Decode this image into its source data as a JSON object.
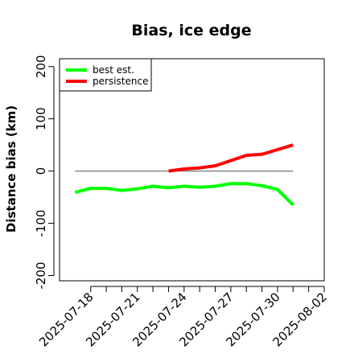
{
  "chart_data": {
    "type": "line",
    "title": "Bias, ice edge",
    "xlabel": "",
    "ylabel": "Distance bias (km)",
    "ylim": [
      -210,
      215
    ],
    "yticks": [
      -200,
      -100,
      0,
      100,
      200
    ],
    "ytick_labels": [
      "-200",
      "-100",
      "0",
      "100",
      "200"
    ],
    "xlim": [
      "2025-07-16",
      "2025-08-02"
    ],
    "xticks": [
      "2025-07-18",
      "2025-07-19",
      "2025-07-20",
      "2025-07-21",
      "2025-07-22",
      "2025-07-23",
      "2025-07-24",
      "2025-07-25",
      "2025-07-26",
      "2025-07-27",
      "2025-07-28",
      "2025-07-29",
      "2025-07-30",
      "2025-07-31",
      "2025-08-01",
      "2025-08-02"
    ],
    "xtick_labels": [
      {
        "date": "2025-07-18",
        "label": "2025-07-18"
      },
      {
        "date": "2025-07-21",
        "label": "2025-07-21"
      },
      {
        "date": "2025-07-24",
        "label": "2025-07-24"
      },
      {
        "date": "2025-07-27",
        "label": "2025-07-27"
      },
      {
        "date": "2025-07-30",
        "label": "2025-07-30"
      },
      {
        "date": "2025-08-02",
        "label": "2025-08-02"
      }
    ],
    "reference_line": {
      "y": 0,
      "x_start": "2025-07-17",
      "x_end": "2025-07-31",
      "color": "#777777"
    },
    "legend": {
      "position": "top-left"
    },
    "series": [
      {
        "name": "best est.",
        "color": "#00ff00",
        "points": [
          {
            "x": "2025-07-17",
            "y": -41
          },
          {
            "x": "2025-07-18",
            "y": -33
          },
          {
            "x": "2025-07-19",
            "y": -33
          },
          {
            "x": "2025-07-20",
            "y": -37
          },
          {
            "x": "2025-07-21",
            "y": -34
          },
          {
            "x": "2025-07-22",
            "y": -29
          },
          {
            "x": "2025-07-23",
            "y": -32
          },
          {
            "x": "2025-07-24",
            "y": -29
          },
          {
            "x": "2025-07-25",
            "y": -31
          },
          {
            "x": "2025-07-26",
            "y": -29
          },
          {
            "x": "2025-07-27",
            "y": -24
          },
          {
            "x": "2025-07-28",
            "y": -24
          },
          {
            "x": "2025-07-29",
            "y": -28
          },
          {
            "x": "2025-07-30",
            "y": -35
          },
          {
            "x": "2025-07-31",
            "y": -65
          }
        ]
      },
      {
        "name": "persistence",
        "color": "#ff0000",
        "points": [
          {
            "x": "2025-07-23",
            "y": 0
          },
          {
            "x": "2025-07-24",
            "y": 4
          },
          {
            "x": "2025-07-25",
            "y": 6
          },
          {
            "x": "2025-07-26",
            "y": 10
          },
          {
            "x": "2025-07-27",
            "y": 20
          },
          {
            "x": "2025-07-28",
            "y": 30
          },
          {
            "x": "2025-07-29",
            "y": 32
          },
          {
            "x": "2025-07-30",
            "y": 41
          },
          {
            "x": "2025-07-31",
            "y": 50
          }
        ]
      }
    ]
  }
}
